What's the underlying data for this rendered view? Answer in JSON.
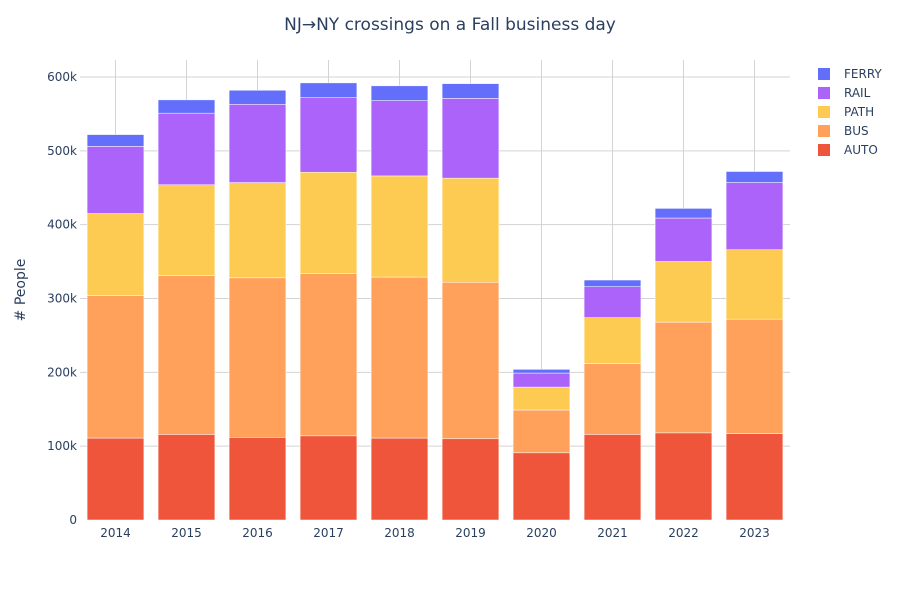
{
  "chart_data": {
    "type": "bar",
    "stacked": true,
    "title": "NJ→NY crossings on a Fall business day",
    "xlabel": "",
    "ylabel": "# People",
    "categories": [
      "2014",
      "2015",
      "2016",
      "2017",
      "2018",
      "2019",
      "2020",
      "2021",
      "2022",
      "2023"
    ],
    "ylim": [
      0,
      623000
    ],
    "yticks": [
      0,
      100000,
      200000,
      300000,
      400000,
      500000,
      600000
    ],
    "ytick_labels": [
      "0",
      "100k",
      "200k",
      "300k",
      "400k",
      "500k",
      "600k"
    ],
    "grid": true,
    "legend_position": "top-right",
    "series": [
      {
        "name": "AUTO",
        "color": "#EF553B",
        "values": [
          111000,
          116000,
          112000,
          114000,
          111000,
          110000,
          91000,
          116000,
          118000,
          117000
        ]
      },
      {
        "name": "BUS",
        "color": "#FFA15A",
        "values": [
          193000,
          215000,
          216000,
          220000,
          218000,
          212000,
          58000,
          96000,
          150000,
          155000
        ]
      },
      {
        "name": "PATH",
        "color": "#FECB52",
        "values": [
          111000,
          123000,
          129000,
          137000,
          137000,
          141000,
          31000,
          62000,
          82000,
          94000
        ]
      },
      {
        "name": "RAIL",
        "color": "#AB63FA",
        "values": [
          91000,
          97000,
          106000,
          101000,
          102000,
          108000,
          19000,
          42000,
          59000,
          91000
        ]
      },
      {
        "name": "FERRY",
        "color": "#636EFA",
        "values": [
          16000,
          18000,
          19000,
          20000,
          20000,
          20000,
          5000,
          9000,
          13000,
          15000
        ]
      }
    ]
  }
}
